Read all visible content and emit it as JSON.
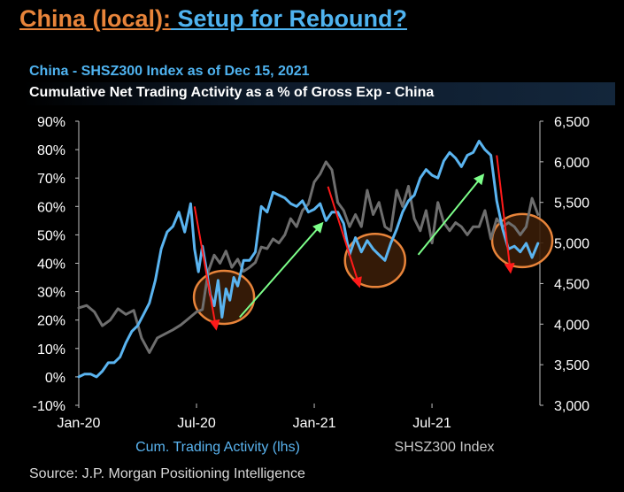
{
  "headline": {
    "part1": "China (local):",
    "part2": " Setup for Rebound?"
  },
  "subtitle": "China - SHSZ300 Index as of Dec 15, 2021",
  "subbar_text": "Cumulative Net Trading Activity as a % of Gross Exp - China",
  "source": "Source: J.P. Morgan Positioning Intelligence",
  "colors": {
    "activity": "#5ab4f0",
    "index": "#6e6e6e",
    "red_arrow": "#ff1a1a",
    "green_arrow": "#7dff8a",
    "circle": "#e8843a",
    "circle_fill": "#3a1d08"
  },
  "chart_data": {
    "type": "line",
    "title": "Cumulative Net Trading Activity as a % of Gross Exp - China",
    "x_ticks": [
      "Jan-20",
      "Jul-20",
      "Jan-21",
      "Jul-21"
    ],
    "x_tick_months": [
      0,
      6,
      12,
      18
    ],
    "x_range_months": [
      0,
      23.5
    ],
    "left_axis": {
      "label": "Cum. Trading Activity (lhs)",
      "range": [
        -10,
        90
      ],
      "ticks": [
        "-10%",
        "0%",
        "10%",
        "20%",
        "30%",
        "40%",
        "50%",
        "60%",
        "70%",
        "80%",
        "90%"
      ],
      "values": [
        -10,
        0,
        10,
        20,
        30,
        40,
        50,
        60,
        70,
        80,
        90
      ]
    },
    "right_axis": {
      "label": "SHSZ300 Index",
      "range": [
        3000,
        6500
      ],
      "ticks": [
        "3,000",
        "3,500",
        "4,000",
        "4,500",
        "5,000",
        "5,500",
        "6,000",
        "6,500"
      ],
      "values": [
        3000,
        3500,
        4000,
        4500,
        5000,
        5500,
        6000,
        6500
      ]
    },
    "series": [
      {
        "name": "Cum. Trading Activity (lhs)",
        "axis": "left",
        "x": [
          0,
          0.3,
          0.6,
          0.9,
          1.2,
          1.5,
          1.8,
          2.1,
          2.4,
          2.7,
          3.0,
          3.3,
          3.6,
          3.9,
          4.2,
          4.5,
          4.8,
          5.1,
          5.4,
          5.7,
          5.9,
          6.1,
          6.3,
          6.5,
          6.7,
          6.9,
          7.1,
          7.3,
          7.5,
          7.7,
          7.9,
          8.1,
          8.4,
          8.7,
          9.0,
          9.3,
          9.6,
          9.9,
          10.2,
          10.5,
          10.8,
          11.1,
          11.4,
          11.7,
          12.0,
          12.3,
          12.6,
          12.9,
          13.2,
          13.5,
          13.8,
          14.1,
          14.4,
          14.7,
          15.0,
          15.3,
          15.6,
          15.9,
          16.2,
          16.5,
          16.8,
          17.1,
          17.4,
          17.7,
          18.0,
          18.3,
          18.6,
          18.9,
          19.2,
          19.5,
          19.8,
          20.1,
          20.4,
          20.7,
          21.0,
          21.3,
          21.6,
          21.9,
          22.2,
          22.5,
          22.8,
          23.1,
          23.4
        ],
        "values": [
          0,
          1,
          1,
          0,
          2,
          5,
          5,
          7,
          12,
          16,
          18,
          22,
          26,
          34,
          45,
          51,
          53,
          58,
          51,
          61,
          45,
          37,
          46,
          38,
          29,
          25,
          34,
          21,
          31,
          27,
          35,
          32,
          41,
          41,
          44,
          60,
          58,
          65,
          64,
          63,
          61,
          60,
          62,
          58,
          59,
          61,
          55,
          58,
          58,
          54,
          43,
          49,
          44,
          48,
          45,
          43,
          41,
          47,
          52,
          58,
          62,
          64,
          70,
          73,
          71,
          70,
          76,
          79,
          77,
          74,
          78,
          79,
          83,
          80,
          78,
          62,
          52,
          45,
          46,
          44,
          47,
          42,
          47
        ]
      },
      {
        "name": "SHSZ300 Index",
        "axis": "right",
        "x": [
          0,
          0.4,
          0.8,
          1.2,
          1.6,
          2.0,
          2.4,
          2.8,
          3.2,
          3.6,
          4.0,
          4.4,
          4.8,
          5.2,
          5.6,
          6.0,
          6.3,
          6.6,
          6.9,
          7.2,
          7.5,
          7.8,
          8.1,
          8.4,
          8.7,
          9.0,
          9.3,
          9.6,
          9.9,
          10.2,
          10.5,
          10.8,
          11.1,
          11.4,
          11.7,
          12.0,
          12.3,
          12.6,
          12.9,
          13.2,
          13.5,
          13.8,
          14.1,
          14.4,
          14.7,
          15.0,
          15.3,
          15.6,
          15.9,
          16.2,
          16.5,
          16.8,
          17.1,
          17.4,
          17.7,
          18.0,
          18.3,
          18.6,
          18.9,
          19.2,
          19.5,
          19.8,
          20.1,
          20.4,
          20.7,
          21.0,
          21.3,
          21.6,
          21.9,
          22.2,
          22.5,
          22.8,
          23.1,
          23.4
        ],
        "values": [
          4200,
          4230,
          4150,
          3980,
          4050,
          4190,
          4120,
          4170,
          3830,
          3650,
          3830,
          3880,
          3930,
          3990,
          4070,
          4150,
          4180,
          4650,
          4850,
          4750,
          4900,
          4700,
          4800,
          4650,
          4700,
          4760,
          4950,
          4930,
          5050,
          5000,
          5100,
          5300,
          5200,
          5400,
          5480,
          5750,
          5850,
          6000,
          5900,
          5500,
          5400,
          5200,
          5350,
          5200,
          5650,
          5350,
          5500,
          5200,
          5150,
          5650,
          5450,
          5700,
          5300,
          5150,
          5400,
          5000,
          5500,
          5250,
          5150,
          5250,
          5200,
          5100,
          5200,
          5200,
          5400,
          5050,
          5300,
          5200,
          5250,
          5200,
          5100,
          5200,
          5550,
          5350
        ]
      }
    ],
    "annotations": {
      "red_arrows": [
        {
          "from": [
            5.9,
            60
          ],
          "to": [
            7.0,
            17
          ]
        },
        {
          "from": [
            12.7,
            67
          ],
          "to": [
            14.3,
            32
          ]
        },
        {
          "from": [
            21.3,
            78
          ],
          "to": [
            22.0,
            37
          ]
        }
      ],
      "green_arrows": [
        {
          "from": [
            8.2,
            21
          ],
          "to": [
            12.4,
            54
          ]
        },
        {
          "from": [
            17.3,
            43
          ],
          "to": [
            20.6,
            71
          ]
        }
      ],
      "circles": [
        {
          "cx": 7.4,
          "cy": 28
        },
        {
          "cx": 15.1,
          "cy": 41
        },
        {
          "cx": 22.6,
          "cy": 48
        }
      ]
    }
  }
}
